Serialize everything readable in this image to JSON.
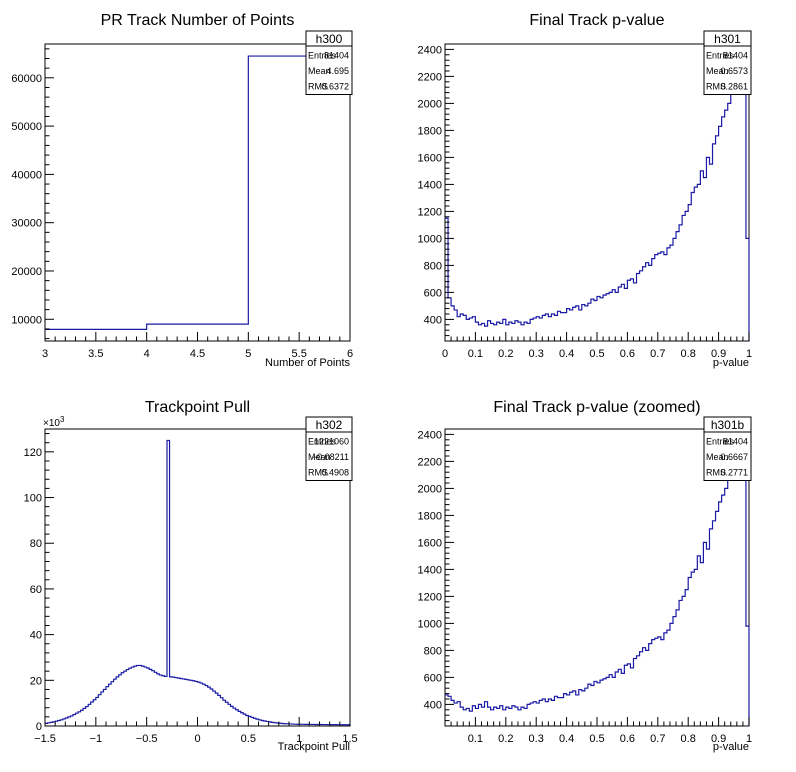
{
  "chart_data": [
    {
      "type": "histogram",
      "title": "PR Track Number of Points",
      "xlabel": "Number of Points",
      "xlim": [
        3,
        6
      ],
      "ylim": [
        5500,
        67000
      ],
      "xticks": [
        "3",
        "3.5",
        "4",
        "4.5",
        "5",
        "5.5",
        "6"
      ],
      "yticks": [
        "10000",
        "20000",
        "30000",
        "40000",
        "50000",
        "60000"
      ],
      "bins": [
        [
          3,
          4,
          7900
        ],
        [
          4,
          5,
          9000
        ],
        [
          5,
          6,
          64500
        ]
      ],
      "stats": {
        "name": "h300",
        "rows": [
          [
            "Entries",
            "81404"
          ],
          [
            "Mean",
            "4.695"
          ],
          [
            "RMS",
            "0.6372"
          ]
        ]
      }
    },
    {
      "type": "histogram",
      "title": "Final Track p-value",
      "xlabel": "p-value",
      "xlim": [
        0,
        1
      ],
      "ylim": [
        240,
        2440
      ],
      "xticks": [
        "0",
        "0.1",
        "0.2",
        "0.3",
        "0.4",
        "0.5",
        "0.6",
        "0.7",
        "0.8",
        "0.9",
        "1"
      ],
      "yticks": [
        "400",
        "600",
        "800",
        "1000",
        "1200",
        "1400",
        "1600",
        "1800",
        "2000",
        "2200",
        "2400"
      ],
      "nbins": 100,
      "values": [
        1150,
        560,
        500,
        470,
        420,
        440,
        430,
        400,
        410,
        420,
        380,
        360,
        370,
        350,
        390,
        370,
        360,
        380,
        370,
        400,
        360,
        380,
        370,
        390,
        380,
        360,
        380,
        370,
        400,
        410,
        420,
        410,
        430,
        440,
        420,
        440,
        430,
        460,
        450,
        450,
        480,
        470,
        490,
        500,
        470,
        510,
        500,
        520,
        550,
        540,
        570,
        560,
        580,
        590,
        600,
        620,
        600,
        640,
        660,
        630,
        690,
        700,
        670,
        740,
        760,
        790,
        820,
        800,
        850,
        880,
        890,
        900,
        880,
        930,
        950,
        1000,
        1050,
        1100,
        1170,
        1200,
        1250,
        1340,
        1380,
        1400,
        1500,
        1450,
        1600,
        1550,
        1700,
        1760,
        1830,
        1900,
        1950,
        2000,
        2100,
        2180,
        2240,
        2320,
        2400,
        1000
      ],
      "stats": {
        "name": "h301",
        "rows": [
          [
            "Entries",
            "81404"
          ],
          [
            "Mean",
            "0.6573"
          ],
          [
            "RMS",
            "0.2861"
          ]
        ]
      }
    },
    {
      "type": "histogram",
      "title": "Trackpoint Pull",
      "xlabel": "Trackpoint Pull",
      "xlim": [
        -1.5,
        1.5
      ],
      "ylim": [
        0,
        130000
      ],
      "xticks": [
        "−1.5",
        "−1",
        "−0.5",
        "0",
        "0.5",
        "1",
        "1.5"
      ],
      "yticks": [
        "0",
        "20",
        "40",
        "60",
        "80",
        "100",
        "120"
      ],
      "exponent_label": "×10",
      "exponent": "3",
      "nbins": 120,
      "values": [
        1140,
        1400,
        1600,
        1800,
        2100,
        2400,
        2700,
        3100,
        3500,
        4000,
        4400,
        5000,
        5600,
        6200,
        6900,
        7700,
        8500,
        9500,
        10500,
        11500,
        12500,
        13700,
        14900,
        16000,
        17200,
        18300,
        19400,
        20500,
        21500,
        22400,
        23300,
        24000,
        24700,
        25300,
        25800,
        26200,
        26500,
        26500,
        26200,
        25800,
        25400,
        24800,
        24200,
        23500,
        22800,
        22300,
        22000,
        21700,
        125000,
        21500,
        21400,
        21200,
        21000,
        20800,
        20600,
        20400,
        20200,
        20000,
        19800,
        19500,
        19200,
        18800,
        18300,
        17700,
        17000,
        16200,
        15300,
        14400,
        13400,
        12400,
        11300,
        10400,
        9500,
        8600,
        7800,
        7100,
        6400,
        5800,
        5200,
        4600,
        4200,
        3800,
        3400,
        3000,
        2700,
        2400,
        2200,
        2000,
        1800,
        1600,
        1450,
        1300,
        1200,
        1100,
        1000,
        950,
        900,
        850,
        800,
        780,
        760,
        740,
        720,
        700,
        690,
        680,
        670,
        660,
        650,
        640,
        630,
        620,
        610,
        600,
        590,
        580,
        570,
        560,
        550,
        540
      ],
      "stats": {
        "name": "h302",
        "rows": [
          [
            "Entries",
            "1221060"
          ],
          [
            "Mean",
            "−0.08211"
          ],
          [
            "RMS",
            "0.4908"
          ]
        ]
      }
    },
    {
      "type": "histogram",
      "title": "Final Track p-value (zoomed)",
      "xlabel": "p-value",
      "xlim": [
        0,
        1
      ],
      "ylim": [
        240,
        2440
      ],
      "xticks": [
        "0.1",
        "0.2",
        "0.3",
        "0.4",
        "0.5",
        "0.6",
        "0.7",
        "0.8",
        "0.9",
        "1"
      ],
      "yticks": [
        "400",
        "600",
        "800",
        "1000",
        "1200",
        "1400",
        "1600",
        "1800",
        "2000",
        "2200",
        "2400"
      ],
      "nbins": 100,
      "values": [
        470,
        460,
        430,
        410,
        420,
        380,
        360,
        370,
        350,
        390,
        370,
        400,
        380,
        420,
        380,
        360,
        380,
        370,
        390,
        360,
        380,
        370,
        390,
        380,
        360,
        380,
        370,
        400,
        410,
        420,
        410,
        430,
        440,
        420,
        440,
        430,
        460,
        450,
        450,
        480,
        470,
        490,
        500,
        470,
        510,
        500,
        520,
        550,
        540,
        570,
        560,
        580,
        590,
        600,
        620,
        600,
        640,
        660,
        630,
        690,
        700,
        670,
        740,
        760,
        790,
        820,
        800,
        850,
        880,
        890,
        900,
        880,
        930,
        950,
        1000,
        1050,
        1100,
        1170,
        1200,
        1250,
        1340,
        1380,
        1400,
        1500,
        1450,
        1600,
        1550,
        1700,
        1760,
        1830,
        1900,
        1950,
        2000,
        2100,
        2180,
        2240,
        2320,
        2400,
        2280,
        980
      ],
      "stats": {
        "name": "h301b",
        "rows": [
          [
            "Entries",
            "81404"
          ],
          [
            "Mean",
            "0.6667"
          ],
          [
            "RMS",
            "0.2771"
          ]
        ]
      }
    }
  ]
}
